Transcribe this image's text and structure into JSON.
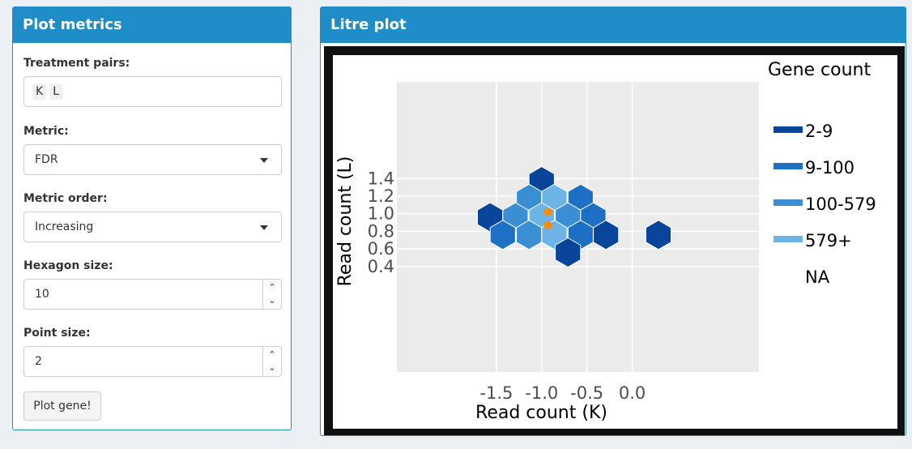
{
  "left_panel": {
    "title": "Plot metrics",
    "treatment_pairs_label": "Treatment pairs:",
    "treatment_pairs_values": [
      "K",
      "L"
    ],
    "metric_label": "Metric:",
    "metric_value": "FDR",
    "metric_order_label": "Metric order:",
    "metric_order_value": "Increasing",
    "hexagon_size_label": "Hexagon size:",
    "hexagon_size_value": "10",
    "point_size_label": "Point size:",
    "point_size_value": "2",
    "plot_button_label": "Plot gene!"
  },
  "right_panel": {
    "title": "Litre plot"
  },
  "chart_data": {
    "type": "hexbin",
    "xlabel": "Read count (K)",
    "ylabel": "Read count (L)",
    "x_ticks": [
      "-1.5",
      "-1.0",
      "-0.5",
      "0.0"
    ],
    "y_ticks": [
      "0.4",
      "0.6",
      "0.8",
      "1.0",
      "1.2",
      "1.4"
    ],
    "xlim": [
      -2.6,
      1.4
    ],
    "ylim": [
      -0.8,
      2.5
    ],
    "grid": true,
    "background": "#ebebeb",
    "legend": {
      "title": "Gene count",
      "position": "right",
      "entries": [
        {
          "label": "2-9",
          "color": "#08459a"
        },
        {
          "label": "9-100",
          "color": "#1c6fc3"
        },
        {
          "label": "100-579",
          "color": "#3a8fd4"
        },
        {
          "label": "579+",
          "color": "#6cb3e6"
        },
        {
          "label": "NA",
          "color": ""
        }
      ]
    },
    "hexagons": [
      {
        "x": -1.0,
        "y": 1.37,
        "bin": "2-9"
      },
      {
        "x": -1.14,
        "y": 1.17,
        "bin": "100-579"
      },
      {
        "x": -0.86,
        "y": 1.17,
        "bin": "579+"
      },
      {
        "x": -0.57,
        "y": 1.17,
        "bin": "9-100"
      },
      {
        "x": -1.57,
        "y": 0.96,
        "bin": "2-9"
      },
      {
        "x": -1.29,
        "y": 0.96,
        "bin": "100-579"
      },
      {
        "x": -1.0,
        "y": 0.96,
        "bin": "579+"
      },
      {
        "x": -0.71,
        "y": 0.96,
        "bin": "100-579"
      },
      {
        "x": -0.43,
        "y": 0.96,
        "bin": "9-100"
      },
      {
        "x": -1.43,
        "y": 0.76,
        "bin": "9-100"
      },
      {
        "x": -1.14,
        "y": 0.76,
        "bin": "100-579"
      },
      {
        "x": -0.86,
        "y": 0.76,
        "bin": "579+"
      },
      {
        "x": -0.57,
        "y": 0.76,
        "bin": "9-100"
      },
      {
        "x": -0.29,
        "y": 0.76,
        "bin": "2-9"
      },
      {
        "x": 0.29,
        "y": 0.76,
        "bin": "2-9"
      },
      {
        "x": -0.71,
        "y": 0.56,
        "bin": "2-9"
      }
    ],
    "points": [
      {
        "x": -0.93,
        "y": 1.02,
        "color": "#ff8c00"
      },
      {
        "x": -0.93,
        "y": 0.87,
        "color": "#ff8c00"
      }
    ]
  }
}
